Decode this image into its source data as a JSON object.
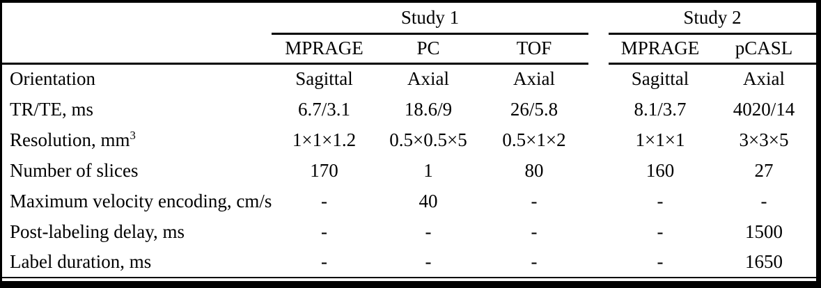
{
  "table": {
    "title_semantic": "MRI acquisition parameters",
    "groups": [
      {
        "label": "Study 1",
        "columns": [
          "MPRAGE",
          "PC",
          "TOF"
        ]
      },
      {
        "label": "Study 2",
        "columns": [
          "MPRAGE",
          "pCASL"
        ]
      }
    ],
    "rows": [
      {
        "label": "Orientation",
        "values": [
          "Sagittal",
          "Axial",
          "Axial",
          "Sagittal",
          "Axial"
        ]
      },
      {
        "label": "TR/TE, ms",
        "values": [
          "6.7/3.1",
          "18.6/9",
          "26/5.8",
          "8.1/3.7",
          "4020/14"
        ]
      },
      {
        "label": "Resolution, mm",
        "label_sup": "3",
        "values": [
          "1×1×1.2",
          "0.5×0.5×5",
          "0.5×1×2",
          "1×1×1",
          "3×3×5"
        ]
      },
      {
        "label": "Number of slices",
        "values": [
          "170",
          "1",
          "80",
          "160",
          "27"
        ]
      },
      {
        "label": "Maximum velocity encoding, cm/s",
        "values": [
          "-",
          "40",
          "-",
          "-",
          "-"
        ]
      },
      {
        "label": "Post-labeling delay, ms",
        "values": [
          "-",
          "-",
          "-",
          "-",
          "1500"
        ]
      },
      {
        "label": "Label duration, ms",
        "values": [
          "-",
          "-",
          "-",
          "-",
          "1650"
        ]
      }
    ],
    "colors": {
      "text": "#000000",
      "background": "#ffffff",
      "rule": "#000000"
    }
  }
}
